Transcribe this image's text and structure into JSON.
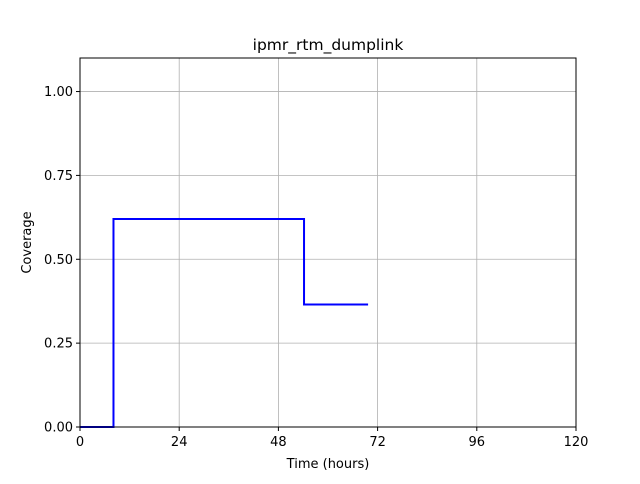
{
  "chart_data": {
    "type": "line",
    "title": "ipmr_rtm_dumplink",
    "xlabel": "Time (hours)",
    "ylabel": "Coverage",
    "xlim": [
      0,
      120
    ],
    "ylim": [
      0,
      1.1
    ],
    "xticks": [
      0,
      24,
      48,
      72,
      96,
      120
    ],
    "yticks": [
      0.0,
      0.25,
      0.5,
      0.75,
      1.0
    ],
    "xtick_labels": [
      "0",
      "24",
      "48",
      "72",
      "96",
      "120"
    ],
    "ytick_labels": [
      "0.00",
      "0.25",
      "0.50",
      "0.75",
      "1.00"
    ],
    "grid": true,
    "series": [
      {
        "color": "#0000ff",
        "x": [
          0,
          8.1,
          8.1,
          54.2,
          54.2,
          69.7
        ],
        "y": [
          0.0,
          0.0,
          0.62,
          0.62,
          0.365,
          0.365
        ]
      }
    ]
  }
}
